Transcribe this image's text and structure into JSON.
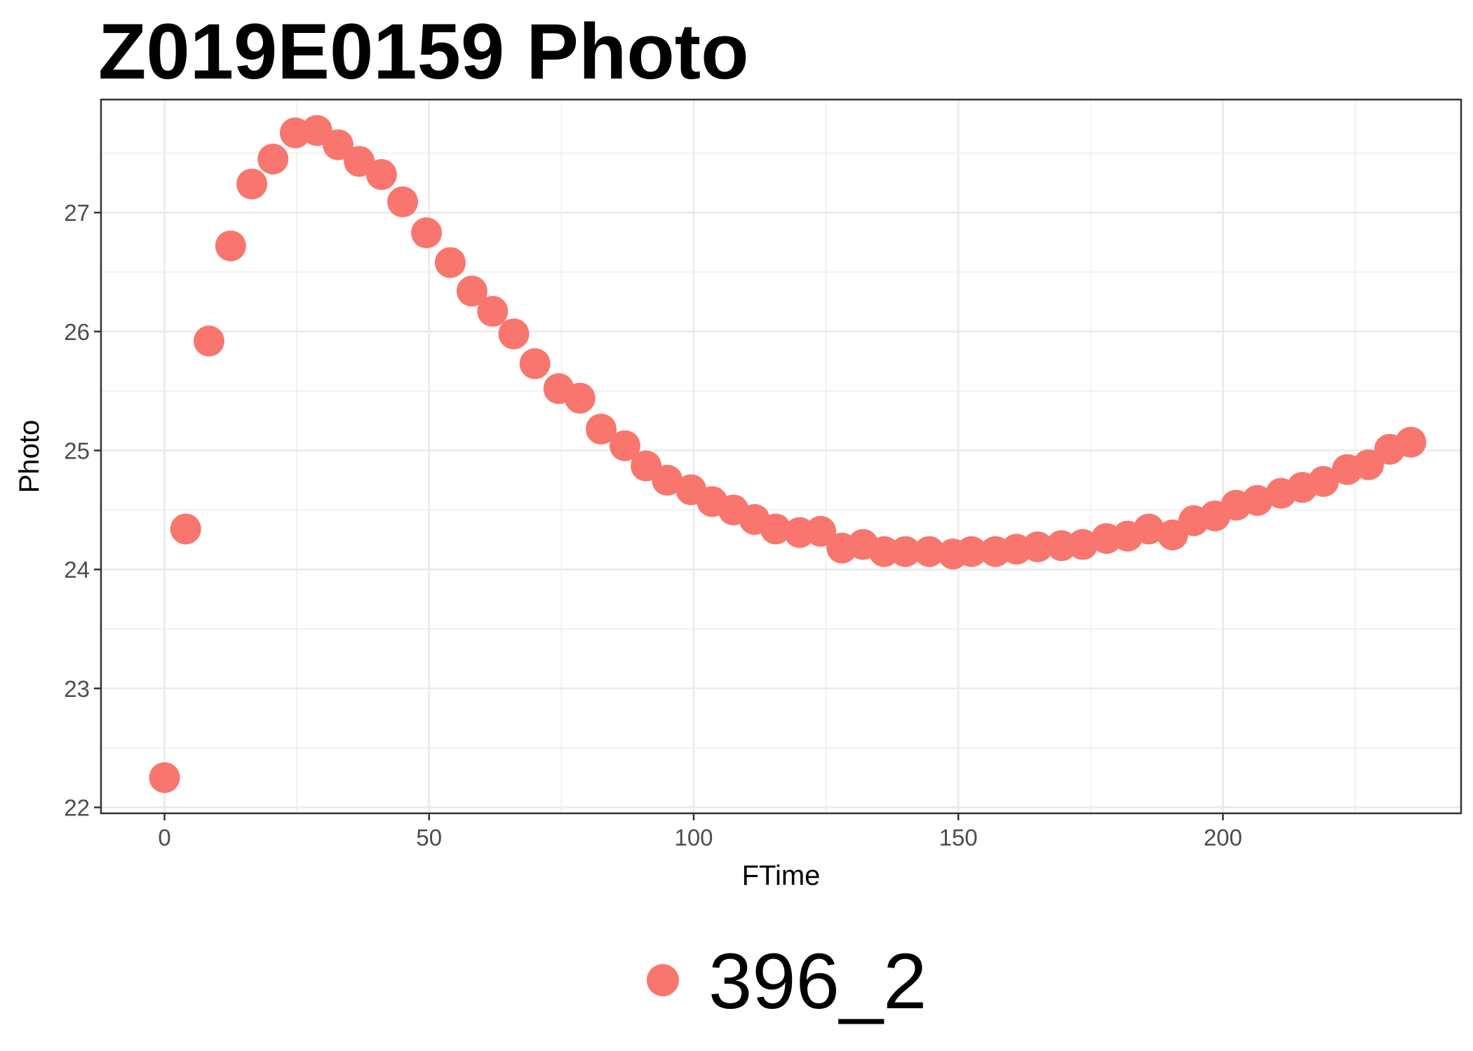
{
  "chart_data": {
    "type": "scatter",
    "title": "Z019E0159 Photo",
    "xlabel": "FTime",
    "ylabel": "Photo",
    "xlim": [
      -12,
      245
    ],
    "ylim": [
      21.95,
      27.95
    ],
    "x_ticks": [
      0,
      50,
      100,
      150,
      200
    ],
    "y_ticks": [
      22,
      23,
      24,
      25,
      26,
      27
    ],
    "grid": true,
    "legend_position": "bottom",
    "colors": {
      "series": "#F8766D",
      "grid": "#ebebeb",
      "border": "#333333"
    },
    "series": [
      {
        "name": "396_2",
        "x": [
          0,
          4,
          8.4,
          12.5,
          16.5,
          20.5,
          24.7,
          28.8,
          32.8,
          36.8,
          41,
          45,
          49.5,
          54,
          58.1,
          62,
          66,
          70,
          74.5,
          78.5,
          82.5,
          87,
          91,
          95,
          99.5,
          103.5,
          107.5,
          111.5,
          115.5,
          120,
          124,
          128,
          132,
          136,
          140,
          144.5,
          149,
          152.5,
          157,
          161,
          165,
          169.5,
          173.5,
          178,
          182,
          186,
          190.5,
          194.5,
          198.5,
          202.5,
          206.5,
          211,
          215,
          219,
          223.5,
          227.5,
          231.5,
          235.5
        ],
        "y": [
          22.25,
          24.34,
          25.92,
          26.72,
          27.24,
          27.45,
          27.67,
          27.69,
          27.57,
          27.43,
          27.32,
          27.09,
          26.83,
          26.58,
          26.34,
          26.17,
          25.98,
          25.73,
          25.52,
          25.44,
          25.18,
          25.04,
          24.87,
          24.75,
          24.67,
          24.57,
          24.5,
          24.42,
          24.34,
          24.31,
          24.32,
          24.18,
          24.21,
          24.15,
          24.15,
          24.15,
          24.13,
          24.15,
          24.15,
          24.17,
          24.19,
          24.2,
          24.21,
          24.26,
          24.28,
          24.34,
          24.29,
          24.41,
          24.45,
          24.54,
          24.58,
          24.64,
          24.69,
          24.74,
          24.84,
          24.88,
          25.01,
          25.07
        ]
      }
    ]
  }
}
